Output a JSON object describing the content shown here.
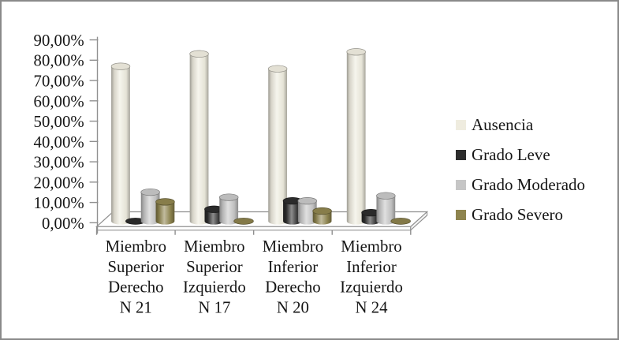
{
  "chart_data": {
    "type": "bar",
    "subtype": "3d-cylinder-clustered",
    "title": "",
    "xlabel": "",
    "ylabel": "",
    "grid": false,
    "legend_position": "right",
    "ylim": [
      0,
      90
    ],
    "ytick_step": 10,
    "ytick_labels": [
      "0,00%",
      "10,00%",
      "20,00%",
      "30,00%",
      "40,00%",
      "50,00%",
      "60,00%",
      "70,00%",
      "80,00%",
      "90,00%"
    ],
    "categories": [
      {
        "label": "Miembro Superior Derecho N 21",
        "lines": [
          "Miembro",
          "Superior",
          "Derecho",
          "N 21"
        ]
      },
      {
        "label": "Miembro Superior Izquierdo N 17",
        "lines": [
          "Miembro",
          "Superior",
          "Izquierdo",
          "N 17"
        ]
      },
      {
        "label": "Miembro Inferior Derecho N 20",
        "lines": [
          "Miembro",
          "Inferior",
          "Derecho",
          "N 20"
        ]
      },
      {
        "label": "Miembro Inferior Izquierdo N 24",
        "lines": [
          "Miembro",
          "Inferior",
          "Izquierdo",
          "N 24"
        ]
      }
    ],
    "series": [
      {
        "name": "Ausencia",
        "color": "#efecdf",
        "values": [
          76.19,
          82.35,
          75.0,
          83.33
        ]
      },
      {
        "name": "Grado Leve",
        "color": "#2d2d2d",
        "values": [
          0.0,
          5.88,
          10.0,
          4.17
        ]
      },
      {
        "name": "Grado Moderado",
        "color": "#c6c6c6",
        "values": [
          14.29,
          11.76,
          10.0,
          12.5
        ]
      },
      {
        "name": "Grado Severo",
        "color": "#8e844e",
        "values": [
          9.52,
          0.0,
          5.0,
          0.0
        ]
      }
    ],
    "axis_color": "#8f8f8f",
    "text_color": "#161616"
  }
}
